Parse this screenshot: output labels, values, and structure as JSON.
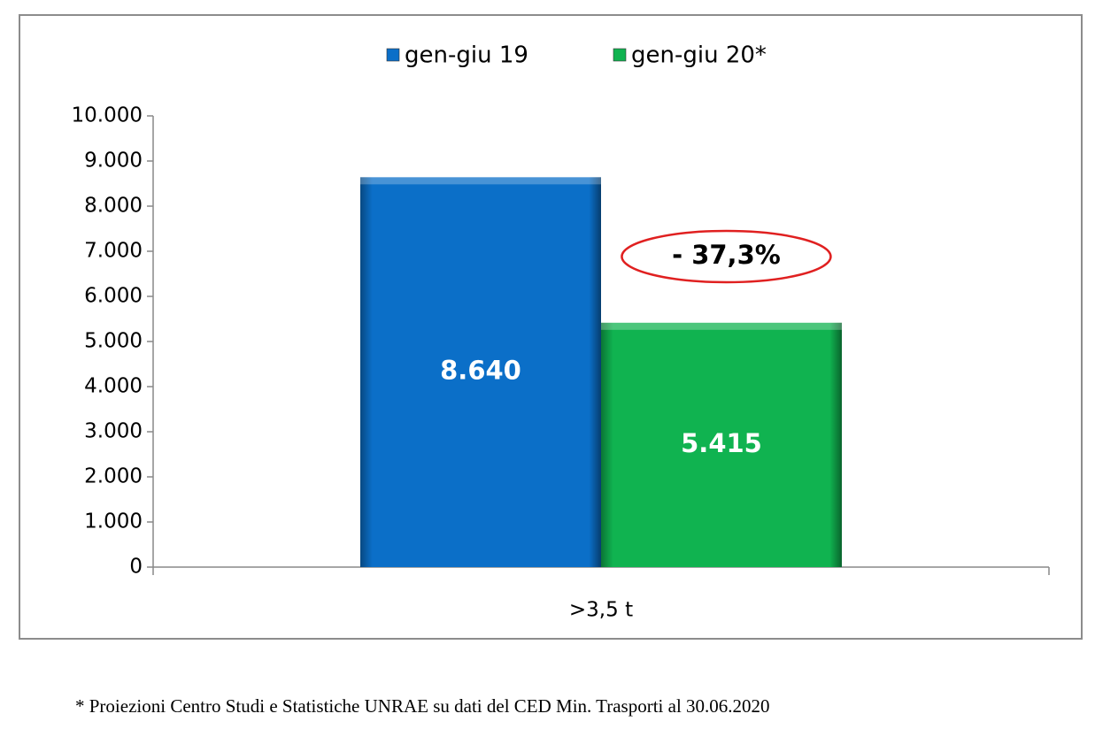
{
  "chart_data": {
    "type": "bar",
    "categories": [
      ">3,5 t"
    ],
    "series": [
      {
        "name": "gen-giu 19",
        "color": "#0b6fc8",
        "values": [
          8640
        ],
        "value_labels": [
          "8.640"
        ]
      },
      {
        "name": "gen-giu 20*",
        "color": "#10b350",
        "values": [
          5415
        ],
        "value_labels": [
          "5.415"
        ]
      }
    ],
    "ylim": [
      0,
      10000
    ],
    "yticks": [
      0,
      {
        "value": 1000,
        "label": "1.000"
      },
      {
        "value": 2000,
        "label": "2.000"
      },
      {
        "value": 3000,
        "label": "3.000"
      },
      {
        "value": 4000,
        "label": "4.000"
      },
      {
        "value": 5000,
        "label": "5.000"
      },
      {
        "value": 6000,
        "label": "6.000"
      },
      {
        "value": 7000,
        "label": "7.000"
      },
      {
        "value": 8000,
        "label": "8.000"
      },
      {
        "value": 9000,
        "label": "9.000"
      },
      {
        "value": 10000,
        "label": "10.000"
      }
    ],
    "annotation": "- 37,3%",
    "legend": "top",
    "grid": false
  },
  "footnote": "* Proiezioni Centro Studi e Statistiche UNRAE su dati del CED Min. Trasporti al 30.06.2020"
}
